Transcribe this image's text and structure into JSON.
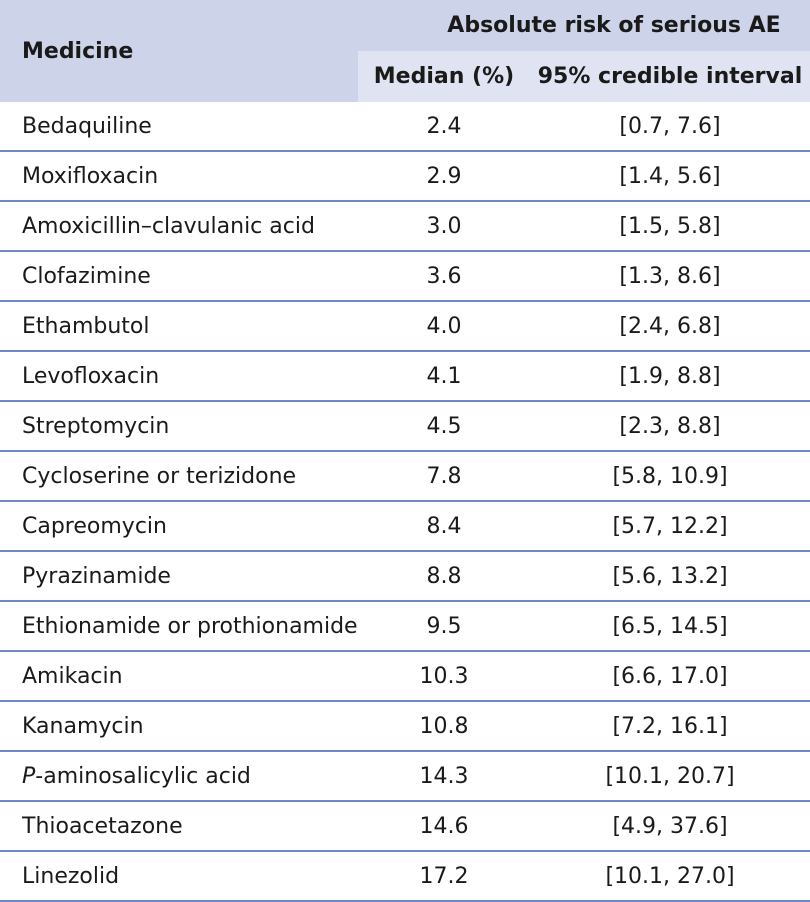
{
  "header": {
    "medicine": "Medicine",
    "group": "Absolute risk of serious AE",
    "median": "Median (%)",
    "ci": "95% credible interval"
  },
  "rows": [
    {
      "name": "Bedaquiline",
      "median": "2.4",
      "ci": "[0.7, 7.6]"
    },
    {
      "name": "Moxifloxacin",
      "median": "2.9",
      "ci": "[1.4, 5.6]"
    },
    {
      "name": "Amoxicillin–clavulanic acid",
      "median": "3.0",
      "ci": "[1.5, 5.8]"
    },
    {
      "name": "Clofazimine",
      "median": "3.6",
      "ci": "[1.3, 8.6]"
    },
    {
      "name": "Ethambutol",
      "median": "4.0",
      "ci": "[2.4, 6.8]"
    },
    {
      "name": "Levofloxacin",
      "median": "4.1",
      "ci": "[1.9, 8.8]"
    },
    {
      "name": "Streptomycin",
      "median": "4.5",
      "ci": "[2.3, 8.8]"
    },
    {
      "name": "Cycloserine or terizidone",
      "median": "7.8",
      "ci": "[5.8, 10.9]"
    },
    {
      "name": "Capreomycin",
      "median": "8.4",
      "ci": "[5.7, 12.2]"
    },
    {
      "name": "Pyrazinamide",
      "median": "8.8",
      "ci": "[5.6, 13.2]"
    },
    {
      "name": "Ethionamide or prothionamide",
      "median": "9.5",
      "ci": "[6.5, 14.5]"
    },
    {
      "name": "Amikacin",
      "median": "10.3",
      "ci": "[6.6, 17.0]"
    },
    {
      "name": "Kanamycin",
      "median": "10.8",
      "ci": "[7.2, 16.1]"
    },
    {
      "name": "P-aminosalicylic acid",
      "median": "14.3",
      "ci": "[10.1, 20.7]"
    },
    {
      "name": "Thioacetazone",
      "median": "14.6",
      "ci": "[4.9, 37.6]"
    },
    {
      "name": "Linezolid",
      "median": "17.2",
      "ci": "[10.1, 27.0]"
    }
  ]
}
